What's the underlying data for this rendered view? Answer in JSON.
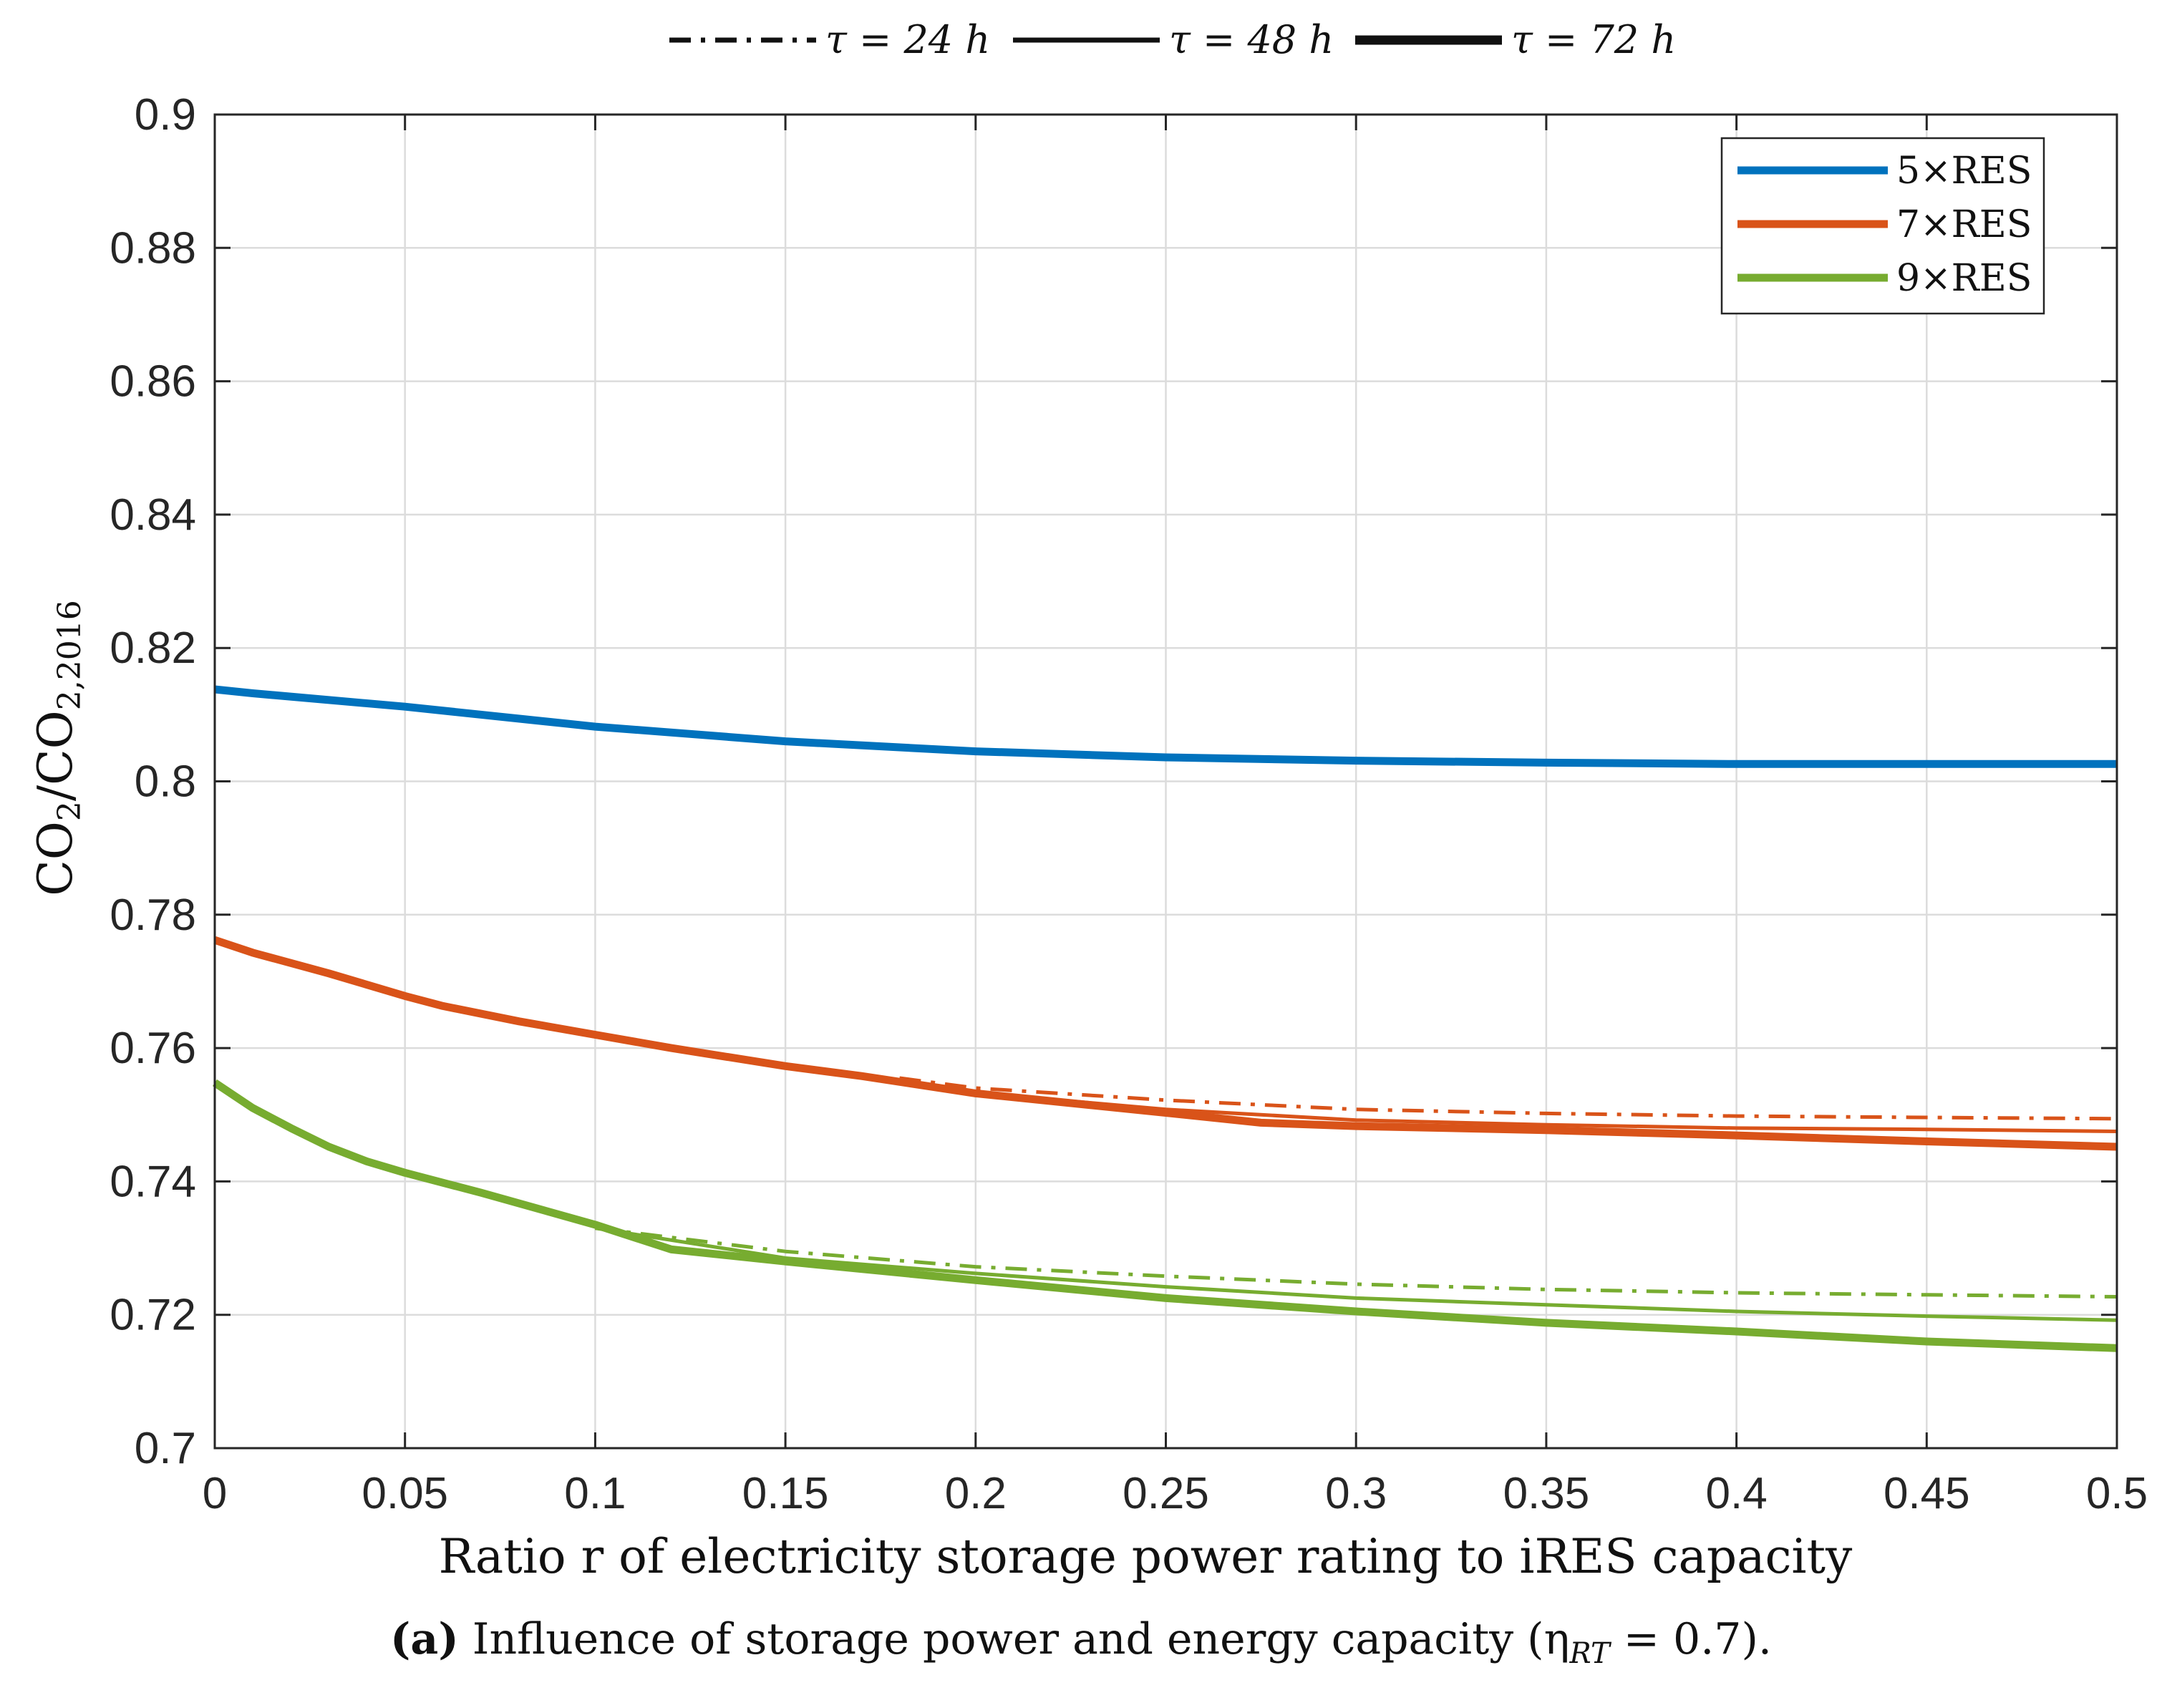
{
  "chart_data": {
    "type": "line",
    "title": "",
    "xlabel": "Ratio r of electricity storage power rating to iRES capacity",
    "ylabel": "CO2/CO2,2016",
    "xlim": [
      0,
      0.5
    ],
    "ylim": [
      0.7,
      0.9
    ],
    "xticks": [
      0,
      0.05,
      0.1,
      0.15,
      0.2,
      0.25,
      0.3,
      0.35,
      0.4,
      0.45,
      0.5
    ],
    "xtick_labels": [
      "0",
      "0.05",
      "0.1",
      "0.15",
      "0.2",
      "0.25",
      "0.3",
      "0.35",
      "0.4",
      "0.45",
      "0.5"
    ],
    "yticks": [
      0.7,
      0.72,
      0.74,
      0.76,
      0.78,
      0.8,
      0.82,
      0.84,
      0.86,
      0.88,
      0.9
    ],
    "ytick_labels": [
      "0.7",
      "0.72",
      "0.74",
      "0.76",
      "0.78",
      "0.8",
      "0.82",
      "0.84",
      "0.86",
      "0.88",
      "0.9"
    ],
    "grid": true,
    "style_legend": [
      {
        "label": "τ = 24 h",
        "style": "dash-dot"
      },
      {
        "label": "τ = 48 h",
        "style": "solid-thin"
      },
      {
        "label": "τ = 72 h",
        "style": "solid-thick"
      }
    ],
    "color_legend": [
      {
        "label": "5×RES",
        "color": "#0072BD"
      },
      {
        "label": "7×RES",
        "color": "#D95319"
      },
      {
        "label": "9×RES",
        "color": "#77AC30"
      }
    ],
    "legend_position": "top-right",
    "series": [
      {
        "name": "5×RES, τ = 72 h",
        "color": "#0072BD",
        "style": "solid-thick",
        "x": [
          0,
          0.01,
          0.05,
          0.1,
          0.15,
          0.2,
          0.25,
          0.3,
          0.35,
          0.4,
          0.45,
          0.5
        ],
        "y": [
          0.8138,
          0.8132,
          0.8112,
          0.8082,
          0.806,
          0.8045,
          0.8036,
          0.8031,
          0.8028,
          0.8026,
          0.8026,
          0.8026
        ]
      },
      {
        "name": "7×RES, τ = 24 h",
        "color": "#D95319",
        "style": "dash-dot",
        "x": [
          0.18,
          0.2,
          0.25,
          0.3,
          0.35,
          0.4,
          0.45,
          0.5
        ],
        "y": [
          0.7555,
          0.754,
          0.7522,
          0.7508,
          0.7502,
          0.7498,
          0.7496,
          0.7494
        ]
      },
      {
        "name": "7×RES, τ = 48 h",
        "color": "#D95319",
        "style": "solid-thin",
        "x": [
          0.18,
          0.2,
          0.25,
          0.3,
          0.35,
          0.4,
          0.45,
          0.5
        ],
        "y": [
          0.755,
          0.7533,
          0.7508,
          0.7492,
          0.7485,
          0.748,
          0.7478,
          0.7475
        ]
      },
      {
        "name": "7×RES, τ = 72 h",
        "color": "#D95319",
        "style": "solid-thick",
        "x": [
          0,
          0.01,
          0.03,
          0.05,
          0.06,
          0.08,
          0.1,
          0.12,
          0.15,
          0.17,
          0.2,
          0.25,
          0.275,
          0.3,
          0.35,
          0.4,
          0.45,
          0.5
        ],
        "y": [
          0.7762,
          0.7743,
          0.7712,
          0.7678,
          0.7663,
          0.764,
          0.762,
          0.76,
          0.7573,
          0.7558,
          0.7532,
          0.7503,
          0.7488,
          0.7483,
          0.7477,
          0.7469,
          0.746,
          0.7452
        ]
      },
      {
        "name": "9×RES, τ = 24 h",
        "color": "#77AC30",
        "style": "dash-dot",
        "x": [
          0.1,
          0.15,
          0.2,
          0.25,
          0.3,
          0.35,
          0.4,
          0.45,
          0.5
        ],
        "y": [
          0.733,
          0.7295,
          0.7272,
          0.7258,
          0.7246,
          0.7238,
          0.7233,
          0.723,
          0.7227
        ]
      },
      {
        "name": "9×RES, τ = 48 h",
        "color": "#77AC30",
        "style": "solid-thin",
        "x": [
          0.1,
          0.15,
          0.2,
          0.25,
          0.3,
          0.35,
          0.4,
          0.45,
          0.5
        ],
        "y": [
          0.733,
          0.7285,
          0.7262,
          0.7242,
          0.7225,
          0.7215,
          0.7205,
          0.7198,
          0.7192
        ]
      },
      {
        "name": "9×RES, τ = 72 h",
        "color": "#77AC30",
        "style": "solid-thick",
        "x": [
          0,
          0.01,
          0.02,
          0.03,
          0.04,
          0.05,
          0.07,
          0.1,
          0.12,
          0.15,
          0.2,
          0.25,
          0.3,
          0.35,
          0.4,
          0.45,
          0.5
        ],
        "y": [
          0.7548,
          0.751,
          0.748,
          0.7452,
          0.743,
          0.7413,
          0.7383,
          0.7335,
          0.7298,
          0.728,
          0.7252,
          0.7225,
          0.7205,
          0.7188,
          0.7175,
          0.716,
          0.715
        ]
      }
    ]
  },
  "caption": {
    "label": "(a)",
    "text": " Influence of storage power and energy capacity (η",
    "sub": "RT",
    "tail": " = 0.7)."
  }
}
